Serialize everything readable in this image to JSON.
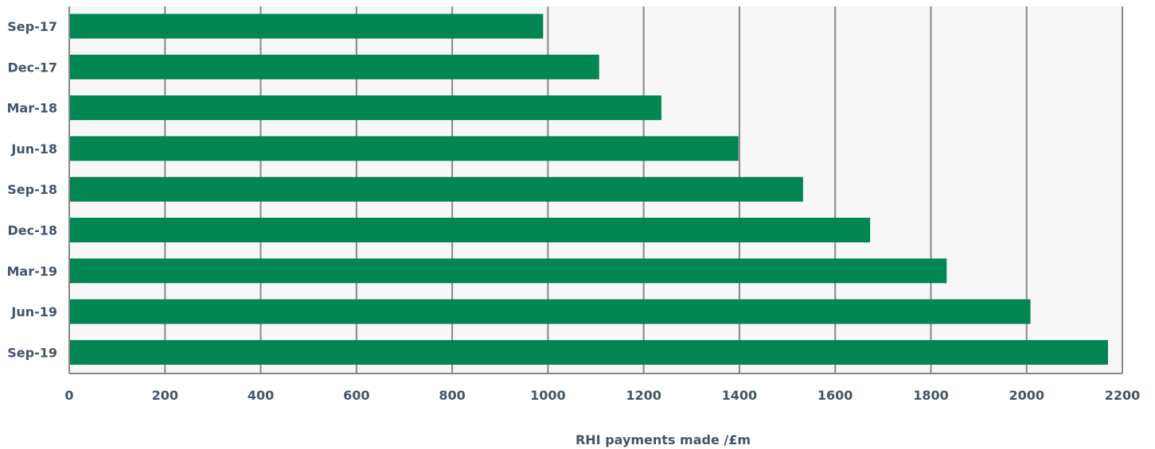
{
  "chart_data": {
    "type": "bar",
    "orientation": "horizontal",
    "title": "",
    "xlabel": "RHI payments made /£m",
    "ylabel": "",
    "categories": [
      "Sep-17",
      "Dec-17",
      "Mar-18",
      "Jun-18",
      "Sep-18",
      "Dec-18",
      "Mar-19",
      "Jun-19",
      "Sep-19"
    ],
    "values": [
      990,
      1107,
      1237,
      1398,
      1533,
      1673,
      1833,
      2008,
      2170
    ],
    "xlim": [
      0,
      2200
    ],
    "xticks": [
      "0",
      "200",
      "400",
      "600",
      "800",
      "1000",
      "1200",
      "1400",
      "1600",
      "1800",
      "2000",
      "2200"
    ],
    "grid": "vertical",
    "legend": "none",
    "colors": {
      "bar": "#008553",
      "plot_background": "#f7f7f7",
      "gridline": "#888888",
      "text": "#44546a"
    }
  }
}
